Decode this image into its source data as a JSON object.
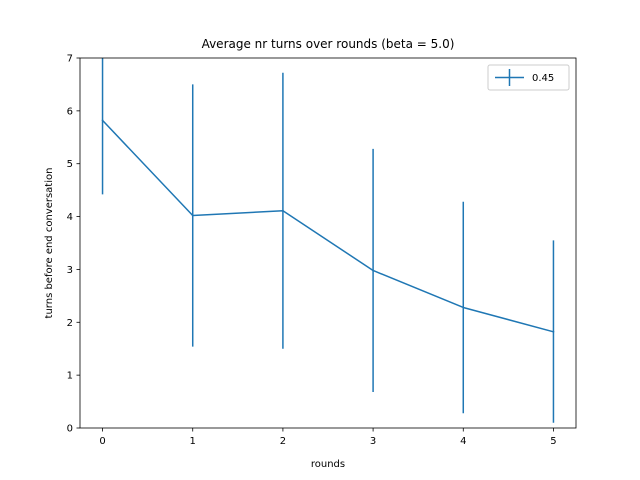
{
  "chart_data": {
    "type": "line",
    "title": "Average nr turns over rounds (beta = 5.0)",
    "xlabel": "rounds",
    "ylabel": "turns before end conversation",
    "xlim": [
      -0.25,
      5.25
    ],
    "ylim": [
      0,
      7
    ],
    "xticks": [
      0,
      1,
      2,
      3,
      4,
      5
    ],
    "yticks": [
      0,
      1,
      2,
      3,
      4,
      5,
      6,
      7
    ],
    "grid": false,
    "legend_position": "top-right",
    "series": [
      {
        "name": "0.45",
        "color": "#1f77b4",
        "x": [
          0,
          1,
          2,
          3,
          4,
          5
        ],
        "y": [
          5.82,
          4.02,
          4.11,
          2.98,
          2.28,
          1.82
        ],
        "yerr_low": [
          4.42,
          1.54,
          1.5,
          0.68,
          0.28,
          0.1
        ],
        "yerr_high": [
          7.0,
          6.5,
          6.72,
          5.28,
          4.28,
          3.55
        ]
      }
    ]
  }
}
